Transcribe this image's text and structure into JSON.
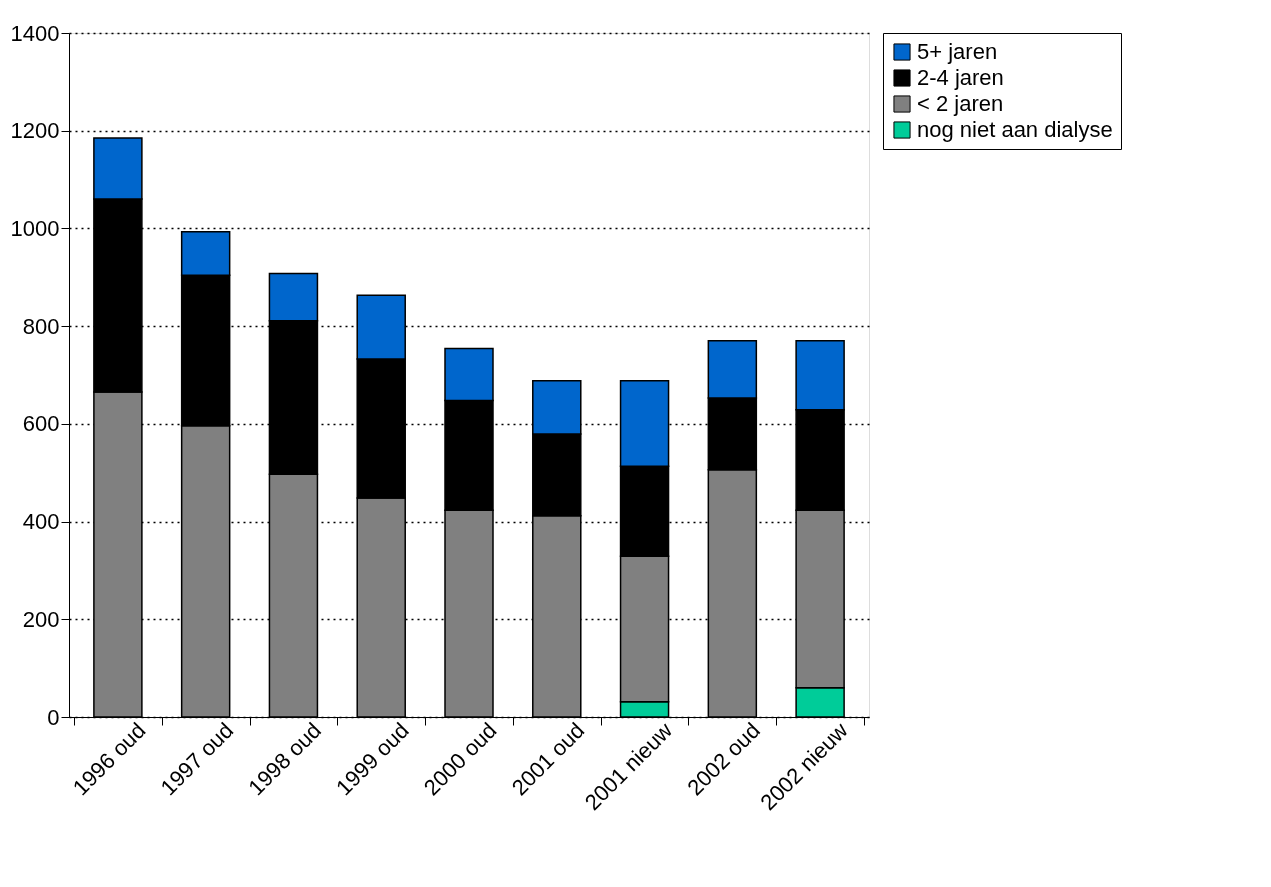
{
  "chart_data": {
    "type": "bar",
    "stacked": true,
    "categories": [
      "1996 oud",
      "1997 oud",
      "1998 oud",
      "1999 oud",
      "2000 oud",
      "2001 oud",
      "2001 nieuw",
      "2002 oud",
      "2002 nieuw"
    ],
    "series": [
      {
        "name": "nog niet aan dialyse",
        "color": "#00cc99",
        "values": [
          null,
          null,
          null,
          null,
          null,
          null,
          31,
          null,
          60
        ]
      },
      {
        "name": "< 2 jaren",
        "color": "#808080",
        "values": [
          665,
          596,
          497,
          448,
          423,
          412,
          298,
          506,
          363
        ]
      },
      {
        "name": "2-4 jaren",
        "color": "#000000",
        "values": [
          395,
          308,
          314,
          285,
          225,
          167,
          184,
          147,
          206
        ]
      },
      {
        "name": "5+ jaren",
        "color": "#0066cc",
        "values": [
          125,
          89,
          97,
          130,
          106,
          109,
          175,
          117,
          141
        ]
      }
    ],
    "ylim": [
      0,
      1400
    ],
    "yticks": [
      0,
      200,
      400,
      600,
      800,
      1000,
      1200,
      1400
    ],
    "grid": "y",
    "legend": "right"
  }
}
